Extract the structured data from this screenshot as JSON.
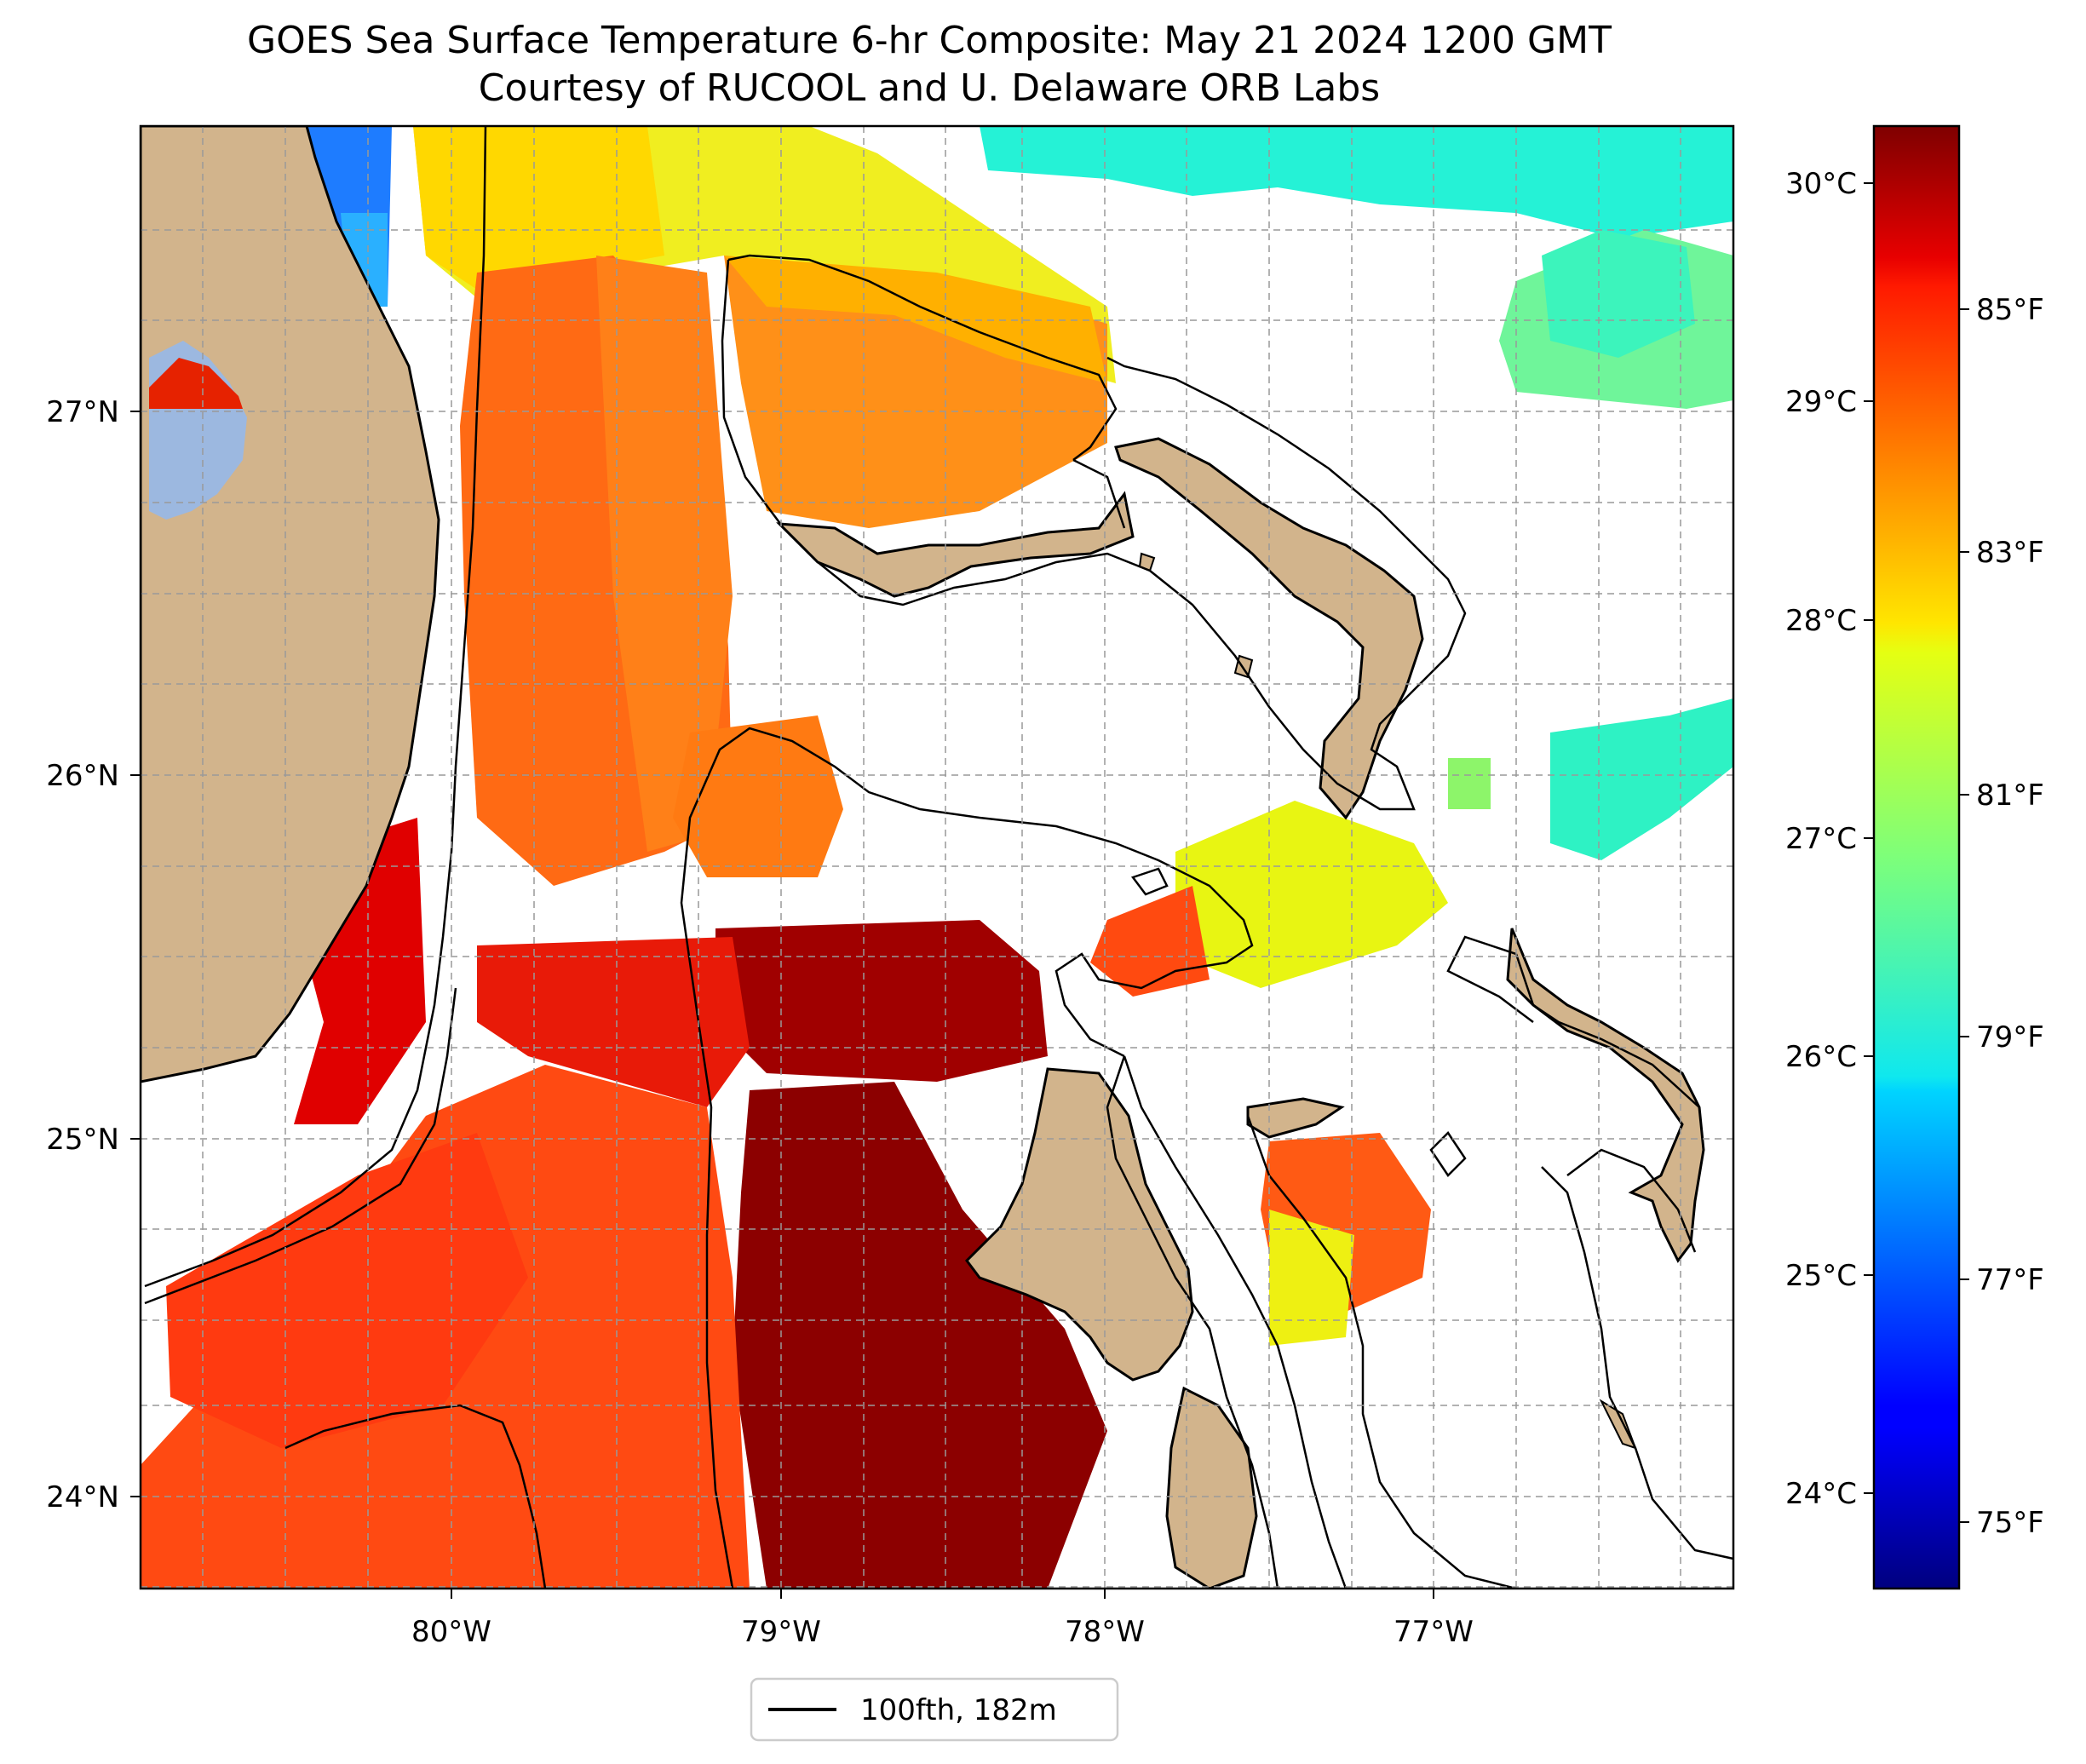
{
  "title_line1": "GOES Sea Surface Temperature 6-hr Composite: May 21 2024 1200 GMT",
  "title_line2": "Courtesy of RUCOOL and U. Delaware ORB Labs",
  "map": {
    "lon_ticks": [
      "80°W",
      "79°W",
      "78°W",
      "77°W"
    ],
    "lat_ticks": [
      "27°N",
      "26°N",
      "25°N",
      "24°N"
    ],
    "grid": true,
    "land_color": "#d2b48c",
    "lake_color": "#9cb8e0"
  },
  "colorbar": {
    "celsius_ticks": [
      "30°C",
      "29°C",
      "28°C",
      "27°C",
      "26°C",
      "25°C",
      "24°C"
    ],
    "fahrenheit_ticks": [
      "85°F",
      "83°F",
      "81°F",
      "79°F",
      "77°F",
      "75°F"
    ],
    "colormap": "jet"
  },
  "legend": {
    "label": "100fth, 182m"
  }
}
